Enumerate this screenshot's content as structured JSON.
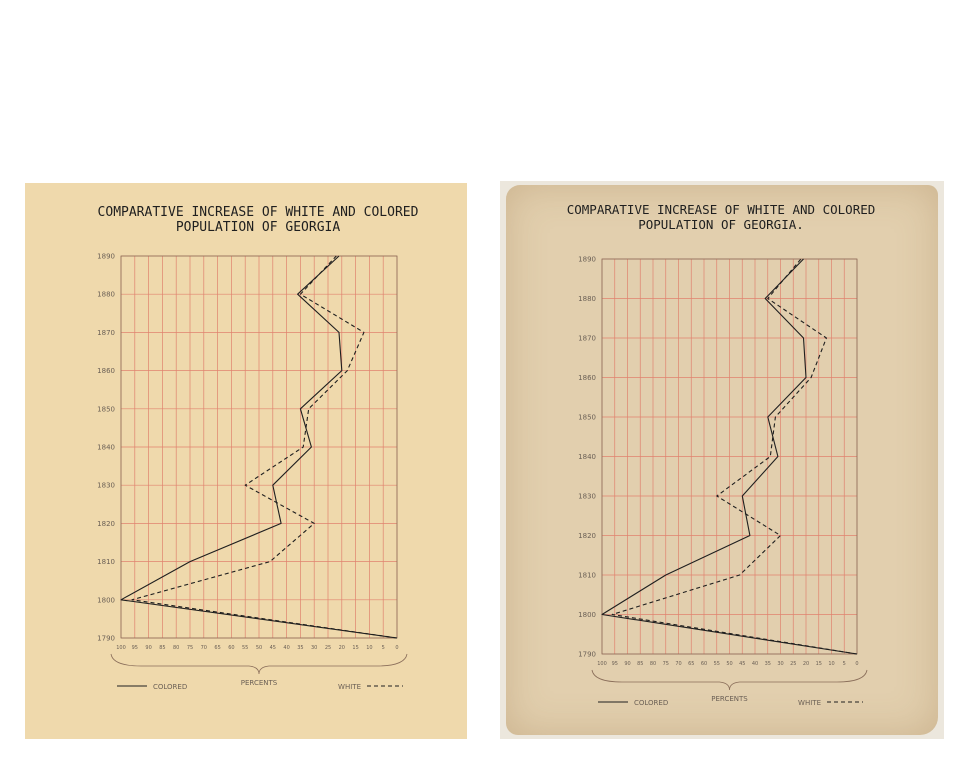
{
  "colors": {
    "panel_a_bg": "#efd9ac",
    "panel_b_bg": "#e2cfae",
    "gridline": "#e0826e",
    "axis": "#8a6e5a",
    "ink": "#1f1f1f",
    "label_ink": "#6a5f55"
  },
  "chart_data": [
    {
      "type": "line",
      "title": "COMPARATIVE INCREASE OF WHITE AND COLORED",
      "subtitle": "POPULATION OF GEORGIA",
      "xlabel": "PERCENTS",
      "ylabel": "",
      "xlim": [
        100,
        0
      ],
      "ylim": [
        1790,
        1890
      ],
      "grid": true,
      "legend_placement": "bottom",
      "x_ticks": [
        "100",
        "95",
        "90",
        "85",
        "80",
        "75",
        "70",
        "65",
        "60",
        "55",
        "50",
        "45",
        "40",
        "35",
        "30",
        "25",
        "20",
        "15",
        "10",
        "5",
        "0"
      ],
      "y_ticks": [
        "1790",
        "1800",
        "1810",
        "1820",
        "1830",
        "1840",
        "1850",
        "1860",
        "1870",
        "1880",
        "1890"
      ],
      "y": [
        1790,
        1800,
        1810,
        1820,
        1830,
        1840,
        1850,
        1860,
        1870,
        1880,
        1890
      ],
      "series": [
        {
          "name": "COLORED",
          "style": "solid",
          "values": [
            0,
            100,
            75,
            42,
            45,
            31,
            35,
            20,
            21,
            36,
            21
          ]
        },
        {
          "name": "WHITE",
          "style": "dashed",
          "values": [
            0,
            96,
            46,
            30,
            55,
            34,
            32,
            18,
            12,
            35,
            22
          ]
        }
      ]
    },
    {
      "type": "line",
      "title": "COMPARATIVE INCREASE OF WHITE AND COLORED",
      "subtitle": "POPULATION OF GEORGIA.",
      "xlabel": "PERCENTS",
      "ylabel": "",
      "xlim": [
        100,
        0
      ],
      "ylim": [
        1790,
        1890
      ],
      "grid": true,
      "legend_placement": "bottom",
      "x_ticks": [
        "100",
        "95",
        "90",
        "85",
        "80",
        "75",
        "70",
        "65",
        "60",
        "55",
        "50",
        "45",
        "40",
        "35",
        "30",
        "25",
        "20",
        "15",
        "10",
        "5",
        "0"
      ],
      "y_ticks": [
        "1790",
        "1800",
        "1810",
        "1820",
        "1830",
        "1840",
        "1850",
        "1860",
        "1870",
        "1880",
        "1890"
      ],
      "y": [
        1790,
        1800,
        1810,
        1820,
        1830,
        1840,
        1850,
        1860,
        1870,
        1880,
        1890
      ],
      "series": [
        {
          "name": "COLORED",
          "style": "solid",
          "values": [
            0,
            100,
            75,
            42,
            45,
            31,
            35,
            20,
            21,
            36,
            21
          ]
        },
        {
          "name": "WHITE",
          "style": "dashed",
          "values": [
            0,
            96,
            46,
            30,
            55,
            34,
            32,
            18,
            12,
            35,
            22
          ]
        }
      ]
    }
  ]
}
